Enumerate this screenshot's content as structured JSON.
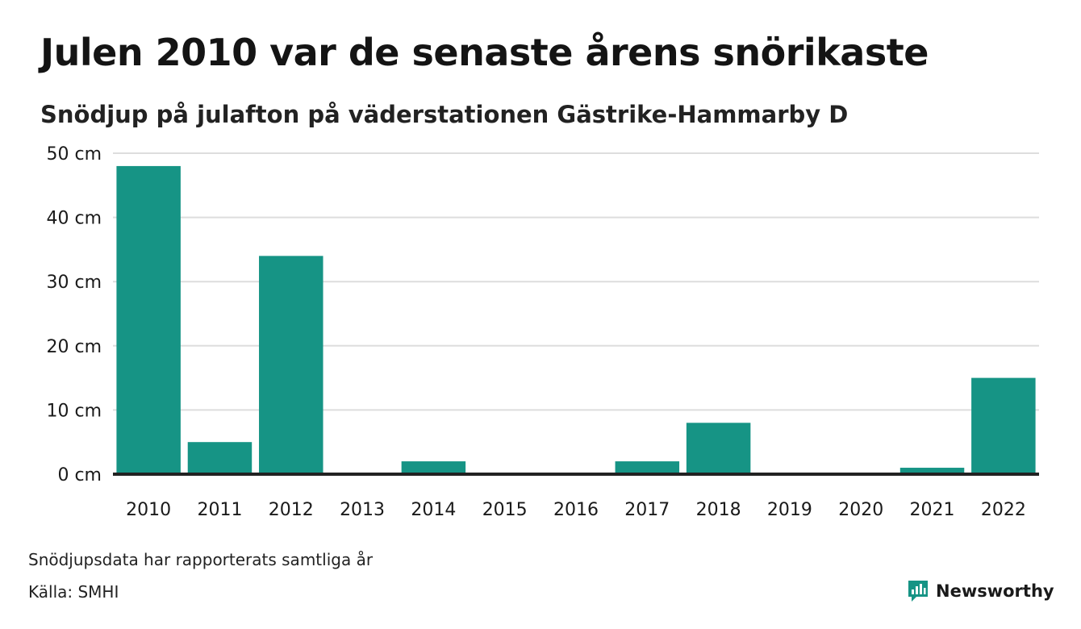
{
  "title": "Julen 2010 var de senaste årens snörikaste",
  "subtitle": "Snödjup på julafton på väderstationen Gästrike-Hammarby D",
  "footnote": "Snödjupsdata har rapporterats samtliga år",
  "source": "Källa: SMHI",
  "brand": {
    "name": "Newsworthy",
    "icon": "newsworthy-logo-icon"
  },
  "colors": {
    "bar": "#169485",
    "grid": "#dddddd",
    "baseline": "#222222",
    "brand": "#169485"
  },
  "chart_data": {
    "type": "bar",
    "title": "Julen 2010 var de senaste årens snörikaste",
    "subtitle": "Snödjup på julafton på väderstationen Gästrike-Hammarby D",
    "categories": [
      "2010",
      "2011",
      "2012",
      "2013",
      "2014",
      "2015",
      "2016",
      "2017",
      "2018",
      "2019",
      "2020",
      "2021",
      "2022"
    ],
    "values": [
      48,
      5,
      34,
      0,
      2,
      0,
      0,
      2,
      8,
      0,
      0,
      1,
      15
    ],
    "ylim": [
      0,
      50
    ],
    "yticks": [
      0,
      10,
      20,
      30,
      40,
      50
    ],
    "ytick_labels": [
      "0 cm",
      "10 cm",
      "20 cm",
      "30 cm",
      "40 cm",
      "50 cm"
    ],
    "grid": true,
    "legend": "none"
  }
}
